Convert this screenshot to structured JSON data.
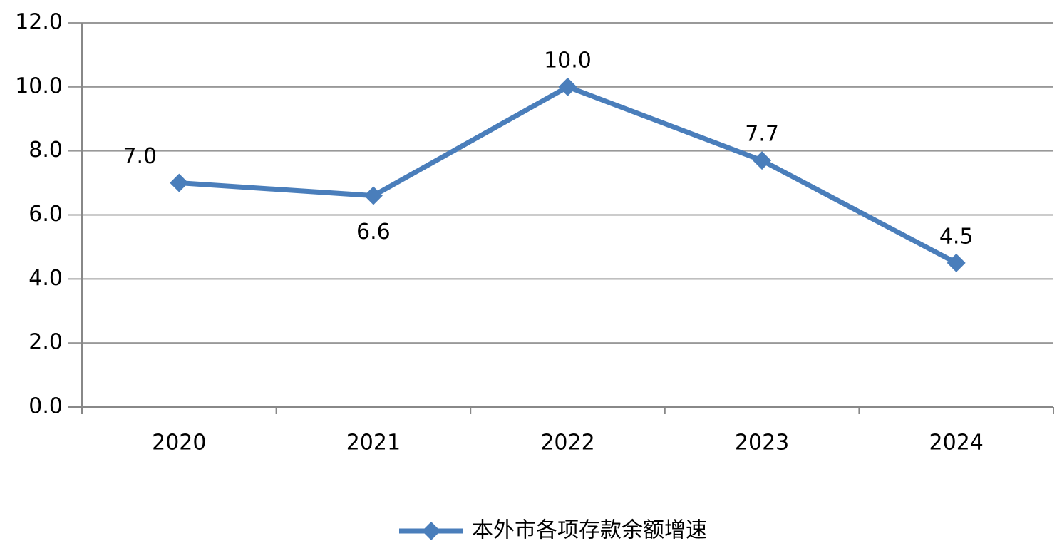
{
  "chart_data": {
    "type": "line",
    "categories": [
      "2020",
      "2021",
      "2022",
      "2023",
      "2024"
    ],
    "series": [
      {
        "name": "本外市各项存款余额增速",
        "color": "#4a7ebb",
        "values": [
          7.0,
          6.6,
          10.0,
          7.7,
          4.5
        ],
        "value_labels": [
          "7.0",
          "6.6",
          "10.0",
          "7.7",
          "4.5"
        ]
      }
    ],
    "ylim": [
      0,
      12
    ],
    "yticks": [
      {
        "value": 0,
        "label": "0.0"
      },
      {
        "value": 2,
        "label": "2.0"
      },
      {
        "value": 4,
        "label": "4.0"
      },
      {
        "value": 6,
        "label": "6.0"
      },
      {
        "value": 8,
        "label": "8.0"
      },
      {
        "value": 10,
        "label": "10.0"
      },
      {
        "value": 12,
        "label": "12.0"
      }
    ],
    "grid": true,
    "legend": "bottom"
  }
}
